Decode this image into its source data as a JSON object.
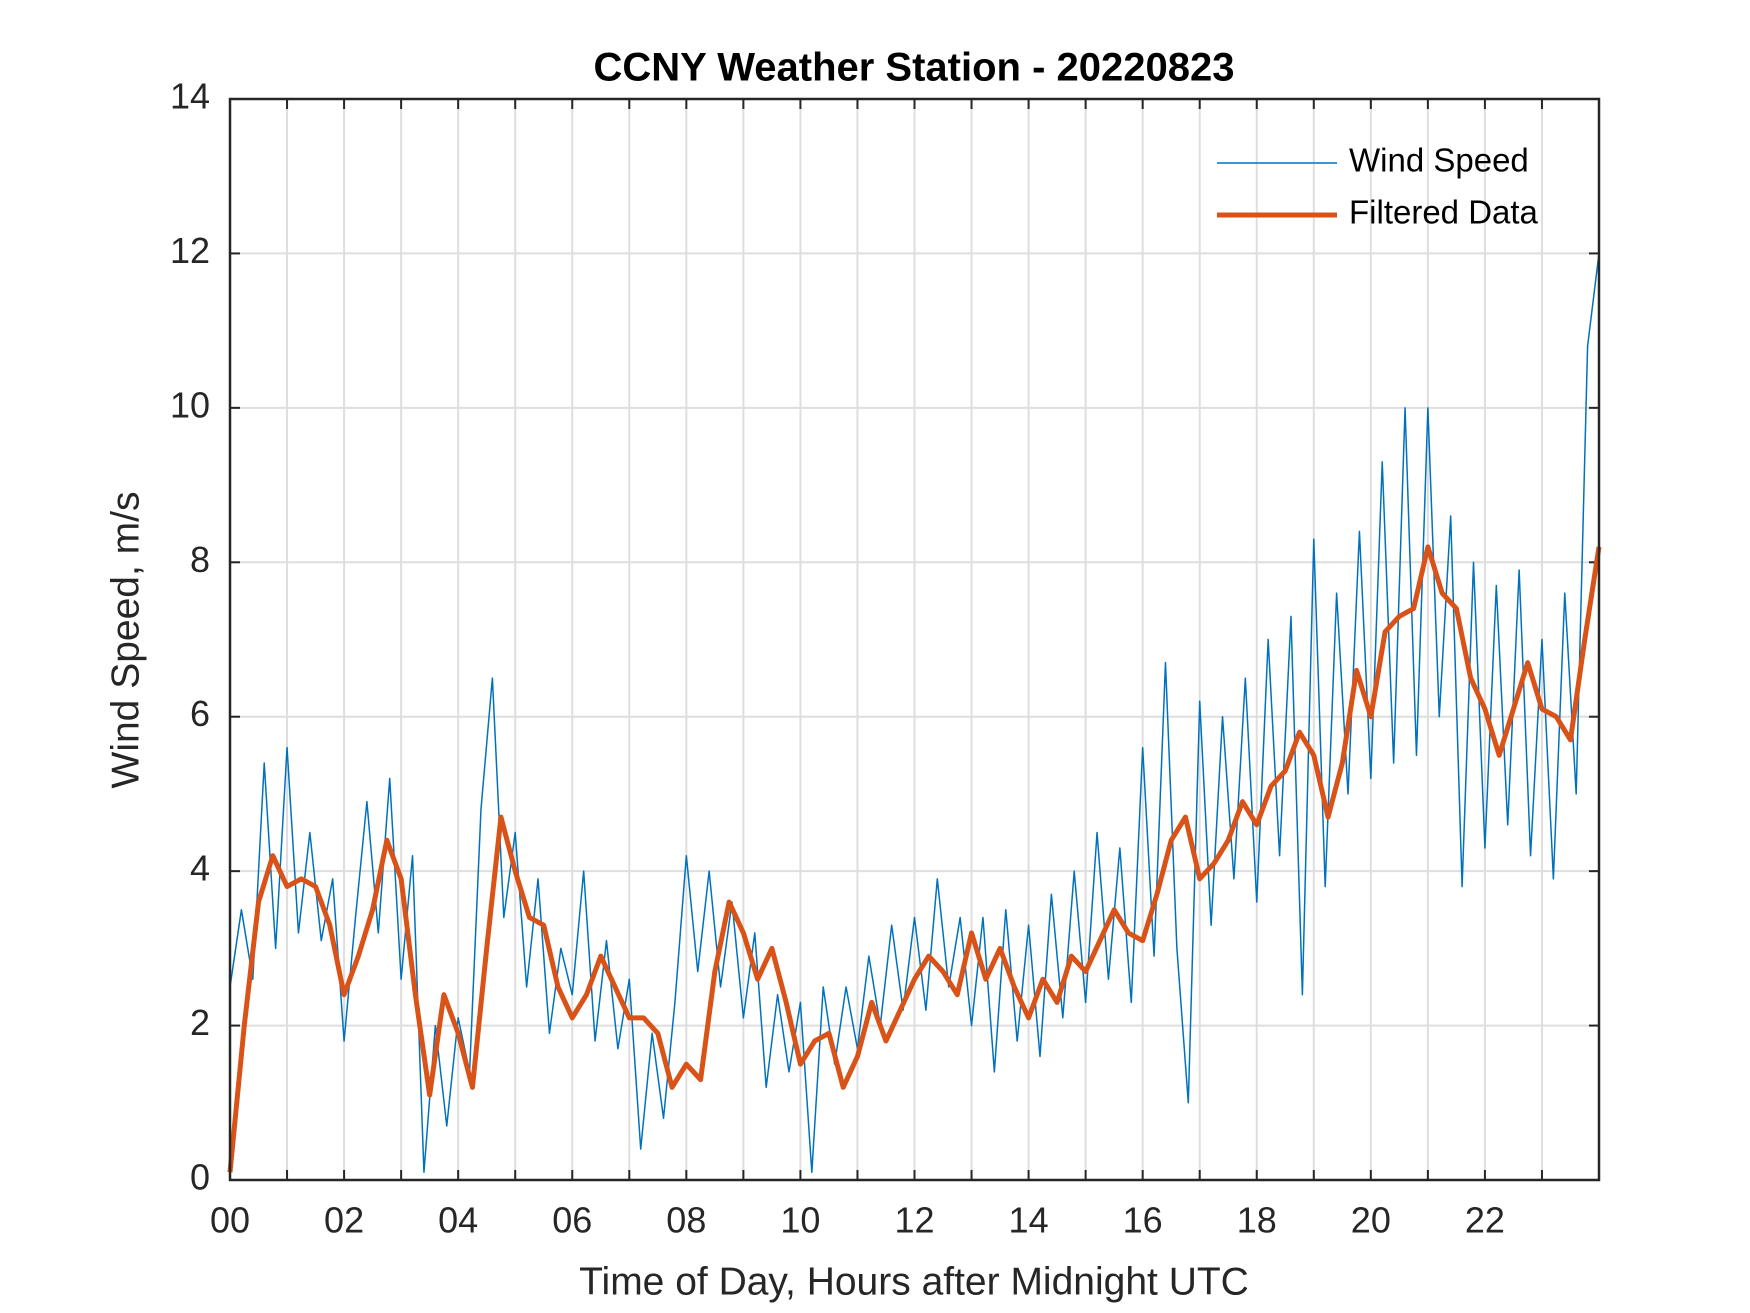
{
  "chart_data": {
    "type": "line",
    "title": "CCNY Weather Station - 20220823",
    "xlabel": "Time of Day, Hours after Midnight UTC",
    "ylabel": "Wind Speed, m/s",
    "xlim": [
      0,
      24
    ],
    "ylim": [
      0,
      14
    ],
    "xticks": [
      {
        "value": 0,
        "label": "00"
      },
      {
        "value": 2,
        "label": "02"
      },
      {
        "value": 4,
        "label": "04"
      },
      {
        "value": 6,
        "label": "06"
      },
      {
        "value": 8,
        "label": "08"
      },
      {
        "value": 10,
        "label": "10"
      },
      {
        "value": 12,
        "label": "12"
      },
      {
        "value": 14,
        "label": "14"
      },
      {
        "value": 16,
        "label": "16"
      },
      {
        "value": 18,
        "label": "18"
      },
      {
        "value": 20,
        "label": "20"
      },
      {
        "value": 22,
        "label": "22"
      }
    ],
    "xminorticks": [
      1,
      3,
      5,
      7,
      9,
      11,
      13,
      15,
      17,
      19,
      21,
      23
    ],
    "yticks": [
      0,
      2,
      4,
      6,
      8,
      10,
      12,
      14
    ],
    "grid": true,
    "legend": "northeast",
    "series": [
      {
        "name": "Wind Speed",
        "color": "#0072bd",
        "width": 1.5,
        "x": [
          0,
          0.2,
          0.4,
          0.6,
          0.8,
          1,
          1.2,
          1.4,
          1.6,
          1.8,
          2,
          2.2,
          2.4,
          2.6,
          2.8,
          3,
          3.2,
          3.4,
          3.6,
          3.8,
          4,
          4.2,
          4.4,
          4.6,
          4.8,
          5,
          5.2,
          5.4,
          5.6,
          5.8,
          6,
          6.2,
          6.4,
          6.6,
          6.8,
          7,
          7.2,
          7.4,
          7.6,
          7.8,
          8,
          8.2,
          8.4,
          8.6,
          8.8,
          9,
          9.2,
          9.4,
          9.6,
          9.8,
          10,
          10.2,
          10.4,
          10.6,
          10.8,
          11,
          11.2,
          11.4,
          11.6,
          11.8,
          12,
          12.2,
          12.4,
          12.6,
          12.8,
          13,
          13.2,
          13.4,
          13.6,
          13.8,
          14,
          14.2,
          14.4,
          14.6,
          14.8,
          15,
          15.2,
          15.4,
          15.6,
          15.8,
          16,
          16.2,
          16.4,
          16.6,
          16.8,
          17,
          17.2,
          17.4,
          17.6,
          17.8,
          18,
          18.2,
          18.4,
          18.6,
          18.8,
          19,
          19.2,
          19.4,
          19.6,
          19.8,
          20,
          20.2,
          20.4,
          20.6,
          20.8,
          21,
          21.2,
          21.4,
          21.6,
          21.8,
          22,
          22.2,
          22.4,
          22.6,
          22.8,
          23,
          23.2,
          23.4,
          23.6,
          23.8,
          24
        ],
        "values": [
          2.5,
          3.5,
          2.6,
          5.4,
          3.0,
          5.6,
          3.2,
          4.5,
          3.1,
          3.9,
          1.8,
          3.4,
          4.9,
          3.2,
          5.2,
          2.6,
          4.2,
          0.1,
          2.0,
          0.7,
          2.1,
          1.4,
          4.8,
          6.5,
          3.4,
          4.5,
          2.5,
          3.9,
          1.9,
          3.0,
          2.4,
          4.0,
          1.8,
          3.1,
          1.7,
          2.6,
          0.4,
          1.9,
          0.8,
          2.3,
          4.2,
          2.7,
          4.0,
          2.5,
          3.6,
          2.1,
          3.2,
          1.2,
          2.4,
          1.4,
          2.3,
          0.1,
          2.5,
          1.5,
          2.5,
          1.7,
          2.9,
          2.0,
          3.3,
          2.2,
          3.4,
          2.2,
          3.9,
          2.5,
          3.4,
          2.0,
          3.4,
          1.4,
          3.5,
          1.8,
          3.3,
          1.6,
          3.7,
          2.1,
          4.0,
          2.3,
          4.5,
          2.6,
          4.3,
          2.3,
          5.6,
          2.9,
          6.7,
          3.0,
          1.0,
          6.2,
          3.3,
          6.0,
          3.9,
          6.5,
          3.6,
          7.0,
          4.2,
          7.3,
          2.4,
          8.3,
          3.8,
          7.6,
          5.0,
          8.4,
          5.2,
          9.3,
          5.4,
          10.0,
          5.5,
          10.0,
          6.0,
          8.6,
          3.8,
          8.0,
          4.3,
          7.7,
          4.6,
          7.9,
          4.2,
          7.0,
          3.9,
          7.6,
          5.0,
          10.8,
          12.0
        ]
      },
      {
        "name": "Filtered Data",
        "color": "#d95319",
        "width": 5,
        "x": [
          0,
          0.25,
          0.5,
          0.75,
          1,
          1.25,
          1.5,
          1.75,
          2,
          2.25,
          2.5,
          2.75,
          3,
          3.25,
          3.5,
          3.75,
          4,
          4.25,
          4.5,
          4.75,
          5,
          5.25,
          5.5,
          5.75,
          6,
          6.25,
          6.5,
          6.75,
          7,
          7.25,
          7.5,
          7.75,
          8,
          8.25,
          8.5,
          8.75,
          9,
          9.25,
          9.5,
          9.75,
          10,
          10.25,
          10.5,
          10.75,
          11,
          11.25,
          11.5,
          11.75,
          12,
          12.25,
          12.5,
          12.75,
          13,
          13.25,
          13.5,
          13.75,
          14,
          14.25,
          14.5,
          14.75,
          15,
          15.25,
          15.5,
          15.75,
          16,
          16.25,
          16.5,
          16.75,
          17,
          17.25,
          17.5,
          17.75,
          18,
          18.25,
          18.5,
          18.75,
          19,
          19.25,
          19.5,
          19.75,
          20,
          20.25,
          20.5,
          20.75,
          21,
          21.25,
          21.5,
          21.75,
          22,
          22.25,
          22.5,
          22.75,
          23,
          23.25,
          23.5,
          23.75,
          24
        ],
        "values": [
          0.1,
          2.0,
          3.6,
          4.2,
          3.8,
          3.9,
          3.8,
          3.3,
          2.4,
          2.9,
          3.5,
          4.4,
          3.9,
          2.4,
          1.1,
          2.4,
          1.9,
          1.2,
          3.0,
          4.7,
          4.0,
          3.4,
          3.3,
          2.5,
          2.1,
          2.4,
          2.9,
          2.5,
          2.1,
          2.1,
          1.9,
          1.2,
          1.5,
          1.3,
          2.7,
          3.6,
          3.2,
          2.6,
          3.0,
          2.3,
          1.5,
          1.8,
          1.9,
          1.2,
          1.6,
          2.3,
          1.8,
          2.2,
          2.6,
          2.9,
          2.7,
          2.4,
          3.2,
          2.6,
          3.0,
          2.5,
          2.1,
          2.6,
          2.3,
          2.9,
          2.7,
          3.1,
          3.5,
          3.2,
          3.1,
          3.7,
          4.4,
          4.7,
          3.9,
          4.1,
          4.4,
          4.9,
          4.6,
          5.1,
          5.3,
          5.8,
          5.5,
          4.7,
          5.4,
          6.6,
          6.0,
          7.1,
          7.3,
          7.4,
          8.2,
          7.6,
          7.4,
          6.5,
          6.1,
          5.5,
          6.1,
          6.7,
          6.1,
          6.0,
          5.7,
          7.0,
          8.2
        ]
      }
    ]
  }
}
